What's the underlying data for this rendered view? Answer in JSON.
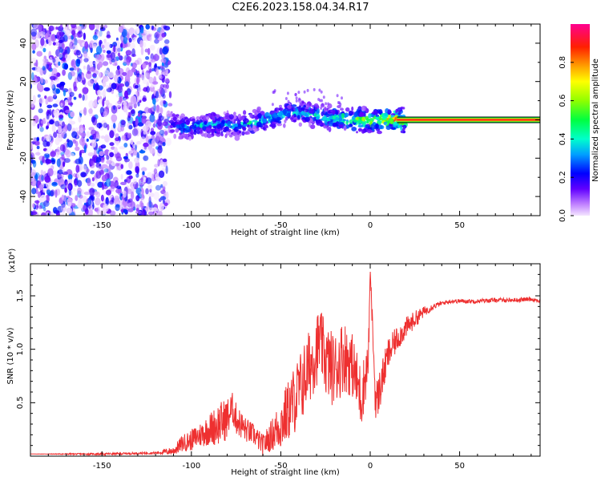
{
  "title": "C2E6.2023.158.04.34.R17",
  "colors": {
    "snr_line": "#ee3030",
    "scatter": "#7a2cf0",
    "colorbar": [
      "#f0d8ff",
      "#b070ff",
      "#5a00ff",
      "#0000ff",
      "#00aaff",
      "#00ffaa",
      "#00ff00",
      "#aaff00",
      "#ffff00",
      "#ffaa00",
      "#ff3300",
      "#ff0080"
    ]
  },
  "chart_data": [
    {
      "type": "heatmap",
      "title": "C2E6.2023.158.04.34.R17",
      "xlabel": "Height of straight line (km)",
      "ylabel": "Frequency (Hz)",
      "xlim": [
        -190,
        95
      ],
      "ylim": [
        -50,
        50
      ],
      "x_ticks": [
        -150,
        -100,
        -50,
        0,
        50
      ],
      "x_tick_labels": [
        "-150",
        "-100",
        "-50",
        "0",
        "50"
      ],
      "y_ticks": [
        -40,
        -20,
        0,
        20,
        40
      ],
      "y_tick_labels": [
        "-40",
        "-20",
        "0",
        "20",
        "40"
      ],
      "noise_region_x": [
        -190,
        -113
      ],
      "colorbar": {
        "label": "Normalized spectral amplitude",
        "range": [
          0.0,
          1.0
        ],
        "ticks": [
          0.0,
          0.2,
          0.4,
          0.6,
          0.8
        ],
        "tick_labels": [
          "0.0",
          "0.2",
          "0.4",
          "0.6",
          "0.8"
        ]
      },
      "ridge": {
        "x": [
          -113,
          -105,
          -95,
          -85,
          -75,
          -65,
          -55,
          -48,
          -40,
          -30,
          -22,
          -15,
          -8,
          0,
          5,
          10,
          15,
          95
        ],
        "y": [
          -1,
          -4,
          -3,
          -2,
          -3,
          -1,
          1,
          3,
          4,
          2,
          1,
          0,
          0,
          -1,
          0,
          0,
          0,
          0
        ],
        "amplitude": [
          0.25,
          0.35,
          0.4,
          0.4,
          0.4,
          0.45,
          0.45,
          0.4,
          0.45,
          0.5,
          0.5,
          0.6,
          0.6,
          0.7,
          0.75,
          0.8,
          0.9,
          0.95
        ]
      }
    },
    {
      "type": "line",
      "xlabel": "Height of straight line (km)",
      "ylabel": "SNR (10 * v/v)",
      "scale_label": "(x10⁴)",
      "xlim": [
        -190,
        95
      ],
      "ylim": [
        0,
        1.8
      ],
      "x_ticks": [
        -150,
        -100,
        -50,
        0,
        50
      ],
      "x_tick_labels": [
        "-150",
        "-100",
        "-50",
        "0",
        "50"
      ],
      "y_ticks": [
        0.5,
        1.0,
        1.5
      ],
      "y_tick_labels": [
        "0.5",
        "1.0",
        "1.5"
      ],
      "series": [
        {
          "x": [
            -190,
            -150,
            -120,
            -110,
            -105,
            -100,
            -95,
            -90,
            -85,
            -80,
            -77,
            -75,
            -70,
            -65,
            -60,
            -55,
            -50,
            -45,
            -40,
            -35,
            -30,
            -28,
            -25,
            -20,
            -15,
            -10,
            -5,
            -1,
            0,
            3,
            5,
            10,
            15,
            20,
            25,
            30,
            35,
            40,
            45,
            50,
            60,
            70,
            80,
            90,
            95
          ],
          "y": [
            0.02,
            0.02,
            0.03,
            0.05,
            0.12,
            0.15,
            0.2,
            0.25,
            0.3,
            0.35,
            0.45,
            0.35,
            0.25,
            0.2,
            0.1,
            0.2,
            0.3,
            0.45,
            0.6,
            0.8,
            1.0,
            1.08,
            0.9,
            0.8,
            0.95,
            0.85,
            0.55,
            0.9,
            1.75,
            0.5,
            0.6,
            0.95,
            1.1,
            1.2,
            1.28,
            1.35,
            1.4,
            1.43,
            1.45,
            1.45,
            1.45,
            1.46,
            1.46,
            1.47,
            1.45
          ],
          "noise_amplitude": [
            0.0,
            0.01,
            0.01,
            0.04,
            0.08,
            0.1,
            0.12,
            0.15,
            0.2,
            0.2,
            0.15,
            0.15,
            0.12,
            0.1,
            0.1,
            0.15,
            0.25,
            0.3,
            0.35,
            0.35,
            0.35,
            0.3,
            0.35,
            0.35,
            0.35,
            0.3,
            0.3,
            0.2,
            0.05,
            0.2,
            0.2,
            0.15,
            0.12,
            0.1,
            0.08,
            0.05,
            0.03,
            0.02,
            0.02,
            0.02,
            0.02,
            0.02,
            0.02,
            0.02,
            0.02
          ]
        }
      ]
    }
  ]
}
